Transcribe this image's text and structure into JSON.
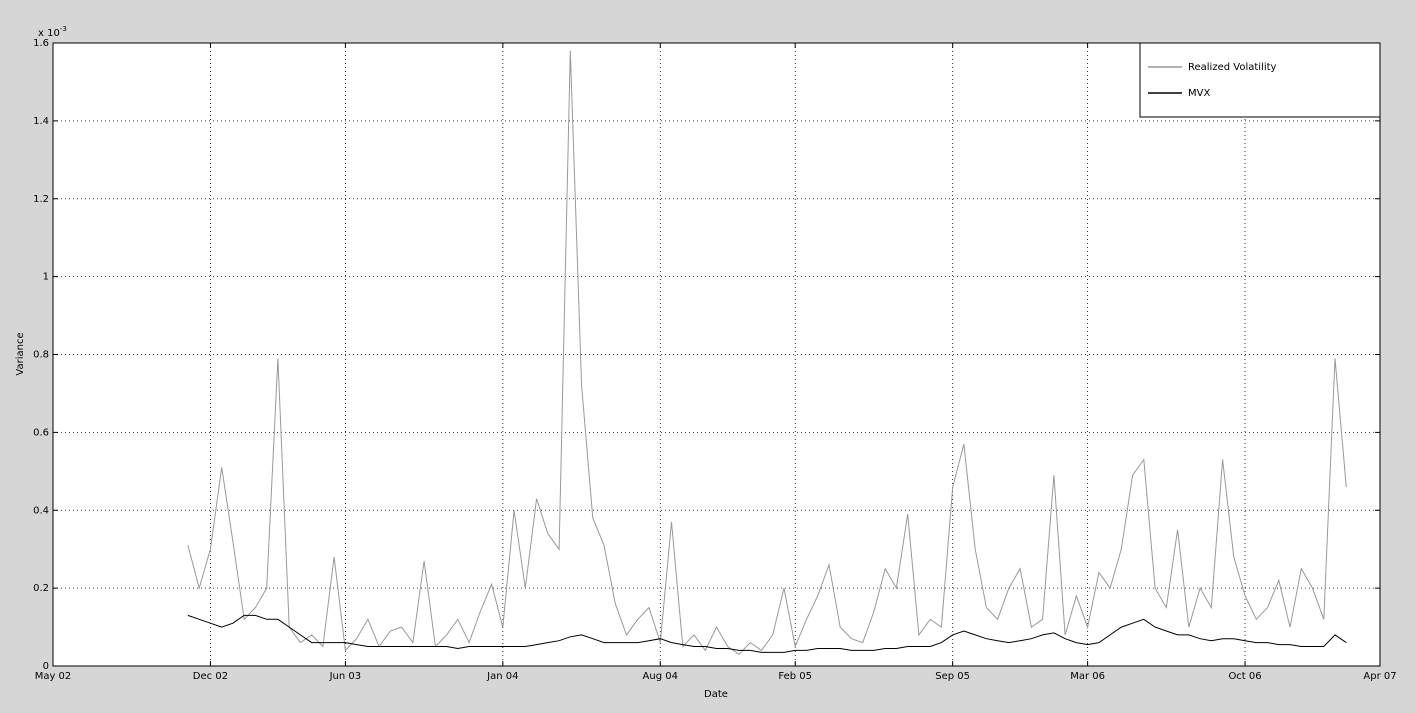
{
  "chart_data": {
    "type": "line",
    "xlabel": "Date",
    "ylabel": "Variance",
    "y_multiplier": {
      "base": "x 10",
      "exponent": "-3"
    },
    "categories": [
      "May 02",
      null,
      null,
      null,
      null,
      null,
      null,
      null,
      null,
      null,
      null,
      null,
      null,
      null,
      "Dec 02",
      null,
      null,
      null,
      null,
      null,
      null,
      null,
      null,
      null,
      null,
      null,
      "Jun 03",
      null,
      null,
      null,
      null,
      null,
      null,
      null,
      null,
      null,
      null,
      null,
      null,
      null,
      "Jan 04",
      null,
      null,
      null,
      null,
      null,
      null,
      null,
      null,
      null,
      null,
      null,
      null,
      null,
      "Aug 04",
      null,
      null,
      null,
      null,
      null,
      null,
      null,
      null,
      null,
      null,
      null,
      "Feb 05",
      null,
      null,
      null,
      null,
      null,
      null,
      null,
      null,
      null,
      null,
      null,
      null,
      null,
      "Sep 05",
      null,
      null,
      null,
      null,
      null,
      null,
      null,
      null,
      null,
      null,
      null,
      "Mar 06",
      null,
      null,
      null,
      null,
      null,
      null,
      null,
      null,
      null,
      null,
      null,
      null,
      null,
      "Oct 06",
      null,
      null,
      null,
      null,
      null,
      null,
      null,
      null,
      null,
      null,
      null,
      "Apr 07"
    ],
    "series": [
      {
        "name": "Realized Volatility",
        "color": "#999999",
        "values": [
          null,
          null,
          null,
          null,
          null,
          null,
          null,
          null,
          null,
          null,
          null,
          null,
          0.31,
          0.2,
          0.3,
          0.51,
          0.32,
          0.12,
          0.15,
          0.2,
          0.79,
          0.1,
          0.06,
          0.08,
          0.05,
          0.28,
          0.04,
          0.07,
          0.12,
          0.05,
          0.09,
          0.1,
          0.06,
          0.27,
          0.05,
          0.08,
          0.12,
          0.06,
          0.14,
          0.21,
          0.1,
          0.4,
          0.2,
          0.43,
          0.34,
          0.3,
          1.58,
          0.72,
          0.38,
          0.31,
          0.16,
          0.08,
          0.12,
          0.15,
          0.06,
          0.37,
          0.05,
          0.08,
          0.04,
          0.1,
          0.05,
          0.03,
          0.06,
          0.04,
          0.08,
          0.2,
          0.05,
          0.12,
          0.18,
          0.26,
          0.1,
          0.07,
          0.06,
          0.14,
          0.25,
          0.2,
          0.39,
          0.08,
          0.12,
          0.1,
          0.46,
          0.57,
          0.3,
          0.15,
          0.12,
          0.2,
          0.25,
          0.1,
          0.12,
          0.49,
          0.08,
          0.18,
          0.1,
          0.24,
          0.2,
          0.3,
          0.49,
          0.53,
          0.2,
          0.15,
          0.35,
          0.1,
          0.2,
          0.15,
          0.53,
          0.28,
          0.18,
          0.12,
          0.15,
          0.22,
          0.1,
          0.25,
          0.2,
          0.12,
          0.79,
          0.46,
          null,
          null,
          null
        ]
      },
      {
        "name": "MVX",
        "color": "#000000",
        "values": [
          null,
          null,
          null,
          null,
          null,
          null,
          null,
          null,
          null,
          null,
          null,
          null,
          0.13,
          0.12,
          0.11,
          0.1,
          0.11,
          0.13,
          0.13,
          0.12,
          0.12,
          0.1,
          0.08,
          0.06,
          0.06,
          0.06,
          0.06,
          0.055,
          0.05,
          0.05,
          0.05,
          0.05,
          0.05,
          0.05,
          0.05,
          0.05,
          0.045,
          0.05,
          0.05,
          0.05,
          0.05,
          0.05,
          0.05,
          0.055,
          0.06,
          0.065,
          0.075,
          0.08,
          0.07,
          0.06,
          0.06,
          0.06,
          0.06,
          0.065,
          0.07,
          0.06,
          0.055,
          0.05,
          0.05,
          0.045,
          0.045,
          0.04,
          0.04,
          0.035,
          0.035,
          0.035,
          0.04,
          0.04,
          0.045,
          0.045,
          0.045,
          0.04,
          0.04,
          0.04,
          0.045,
          0.045,
          0.05,
          0.05,
          0.05,
          0.06,
          0.08,
          0.09,
          0.08,
          0.07,
          0.065,
          0.06,
          0.065,
          0.07,
          0.08,
          0.085,
          0.07,
          0.06,
          0.055,
          0.06,
          0.08,
          0.1,
          0.11,
          0.12,
          0.1,
          0.09,
          0.08,
          0.08,
          0.07,
          0.065,
          0.07,
          0.07,
          0.065,
          0.06,
          0.06,
          0.055,
          0.055,
          0.05,
          0.05,
          0.05,
          0.08,
          0.06,
          null,
          null,
          null
        ]
      }
    ],
    "ylim": [
      0,
      1.6
    ],
    "yticks": [
      0,
      0.2,
      0.4,
      0.6,
      0.8,
      1,
      1.2,
      1.4,
      1.6
    ],
    "grid": true,
    "legend": "upper right"
  }
}
